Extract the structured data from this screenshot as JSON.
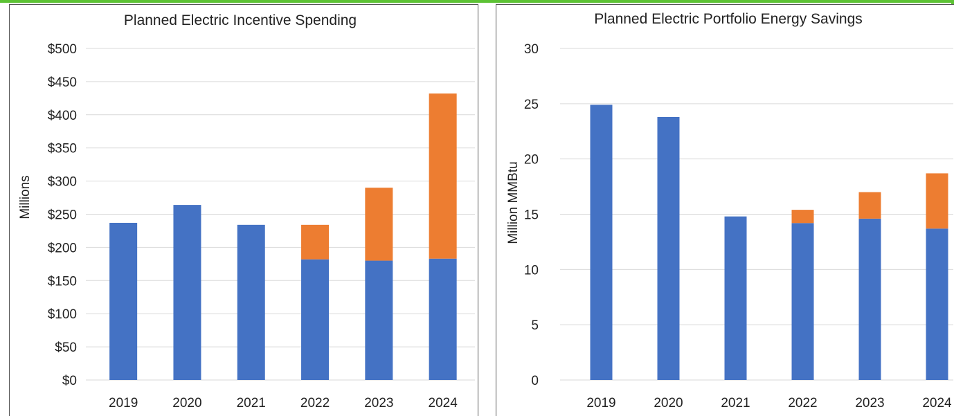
{
  "colors": {
    "accent": "#5cc234",
    "base": "#4472c4",
    "added": "#ed7d31",
    "grid": "#d9d9d9",
    "text": "#222222"
  },
  "chart_data": [
    {
      "type": "bar",
      "stacked": true,
      "title": "Planned Electric Incentive Spending",
      "xlabel": "",
      "ylabel": "Millions",
      "categories": [
        "2019",
        "2020",
        "2021",
        "2022",
        "2023",
        "2024"
      ],
      "series": [
        {
          "color": "#4472c4",
          "values": [
            237,
            264,
            234,
            182,
            180,
            183
          ]
        },
        {
          "color": "#ed7d31",
          "values": [
            0,
            0,
            0,
            52,
            110,
            249
          ]
        }
      ],
      "ylim": [
        0,
        500
      ],
      "yticks": [
        0,
        50,
        100,
        150,
        200,
        250,
        300,
        350,
        400,
        450,
        500
      ],
      "ytick_labels": [
        "$0",
        "$50",
        "$100",
        "$150",
        "$200",
        "$250",
        "$300",
        "$350",
        "$400",
        "$450",
        "$500"
      ],
      "grid": true,
      "legend": "none"
    },
    {
      "type": "bar",
      "stacked": true,
      "title": "Planned Electric Portfolio Energy Savings",
      "xlabel": "",
      "ylabel": "Million MMBtu",
      "categories": [
        "2019",
        "2020",
        "2021",
        "2022",
        "2023",
        "2024"
      ],
      "series": [
        {
          "color": "#4472c4",
          "values": [
            24.9,
            23.8,
            14.8,
            14.2,
            14.6,
            13.7
          ]
        },
        {
          "color": "#ed7d31",
          "values": [
            0,
            0,
            0,
            1.2,
            2.4,
            5.0
          ]
        }
      ],
      "ylim": [
        0,
        30
      ],
      "yticks": [
        0,
        5,
        10,
        15,
        20,
        25,
        30
      ],
      "ytick_labels": [
        "0",
        "5",
        "10",
        "15",
        "20",
        "25",
        "30"
      ],
      "grid": true,
      "legend": "none"
    }
  ]
}
